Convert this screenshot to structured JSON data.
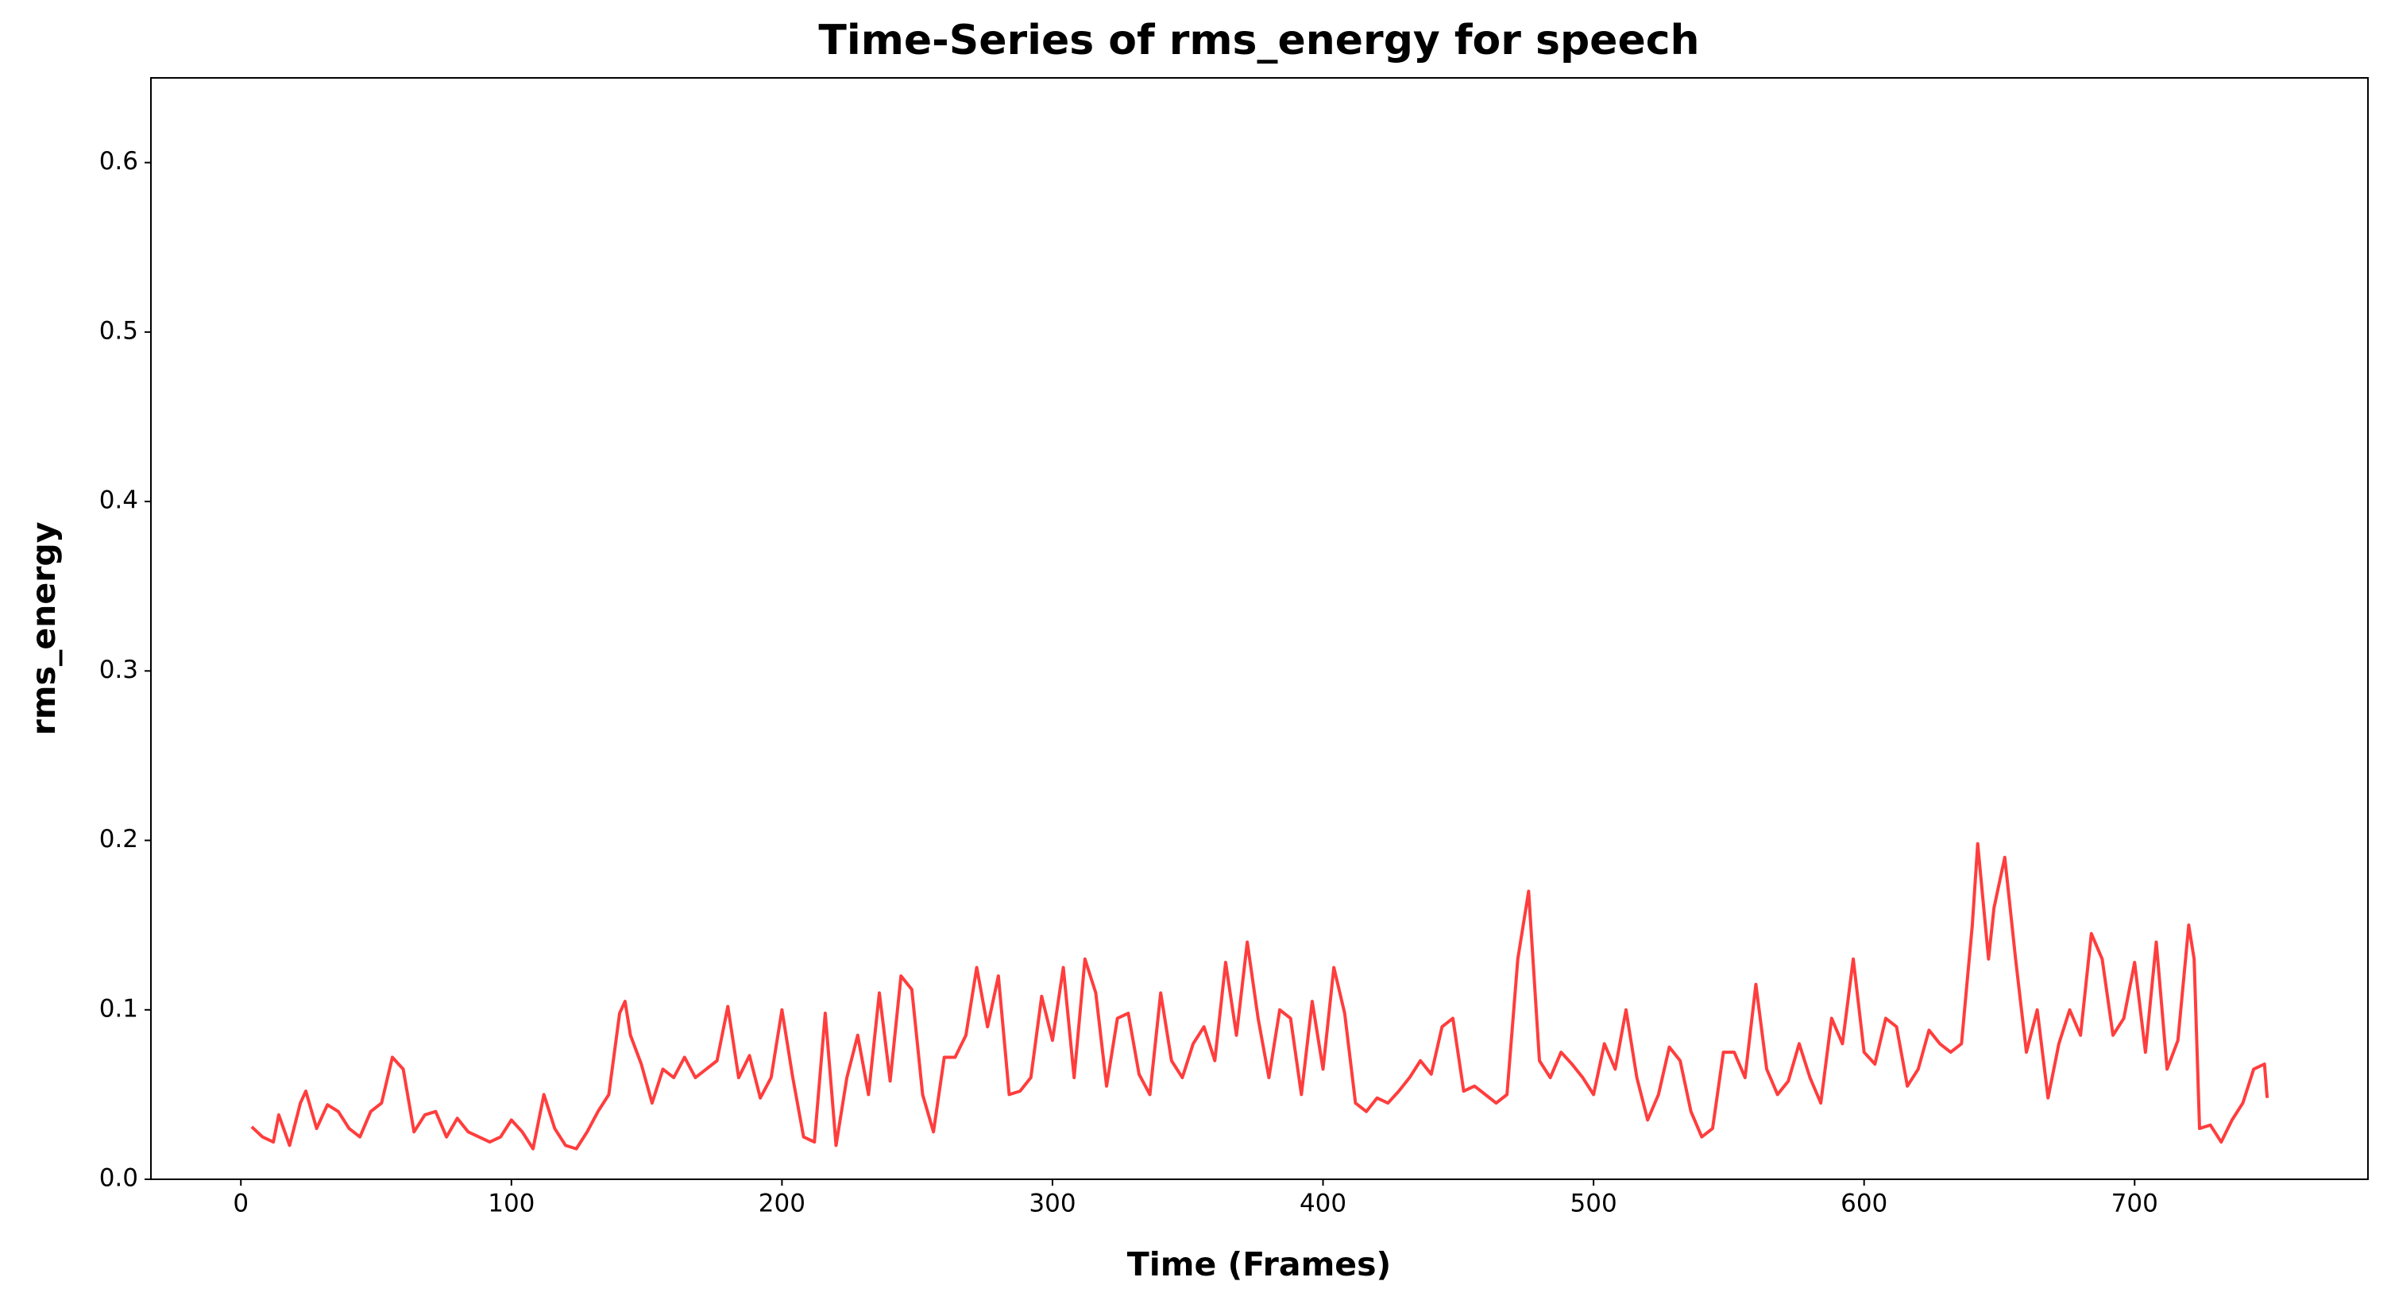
{
  "chart_data": {
    "type": "line",
    "title": "Time-Series of rms_energy for speech",
    "x_label": "Time (Frames)",
    "y_label": "rms_energy",
    "x": [
      4,
      8,
      12,
      14,
      18,
      22,
      24,
      28,
      32,
      36,
      40,
      44,
      48,
      52,
      56,
      60,
      64,
      68,
      72,
      76,
      80,
      84,
      88,
      92,
      96,
      100,
      104,
      108,
      112,
      116,
      120,
      124,
      128,
      132,
      136,
      140,
      142,
      144,
      148,
      152,
      156,
      160,
      164,
      168,
      172,
      176,
      180,
      184,
      188,
      192,
      196,
      200,
      204,
      208,
      212,
      216,
      220,
      224,
      228,
      232,
      236,
      240,
      244,
      248,
      252,
      256,
      260,
      264,
      268,
      272,
      276,
      280,
      284,
      288,
      292,
      296,
      300,
      304,
      308,
      312,
      316,
      320,
      324,
      328,
      332,
      336,
      340,
      344,
      348,
      352,
      356,
      360,
      364,
      368,
      372,
      376,
      380,
      384,
      388,
      392,
      396,
      400,
      404,
      408,
      412,
      416,
      420,
      424,
      428,
      432,
      436,
      440,
      444,
      448,
      452,
      456,
      460,
      464,
      468,
      472,
      476,
      480,
      484,
      488,
      492,
      496,
      500,
      504,
      508,
      512,
      516,
      520,
      524,
      528,
      532,
      536,
      540,
      544,
      548,
      552,
      556,
      560,
      564,
      568,
      572,
      576,
      580,
      584,
      588,
      592,
      596,
      600,
      604,
      608,
      612,
      616,
      620,
      624,
      628,
      632,
      636,
      640,
      642,
      646,
      648,
      652,
      656,
      660,
      664,
      668,
      672,
      676,
      680,
      684,
      688,
      692,
      696,
      700,
      704,
      708,
      712,
      716,
      720,
      722,
      724,
      728,
      732,
      736,
      740,
      744,
      748,
      749
    ],
    "series": [
      {
        "name": "rms_energy",
        "color": "#ff3333",
        "values": [
          0.031,
          0.025,
          0.022,
          0.038,
          0.02,
          0.045,
          0.052,
          0.03,
          0.044,
          0.04,
          0.03,
          0.025,
          0.04,
          0.045,
          0.072,
          0.065,
          0.028,
          0.038,
          0.04,
          0.025,
          0.036,
          0.028,
          0.025,
          0.022,
          0.025,
          0.035,
          0.028,
          0.018,
          0.05,
          0.03,
          0.02,
          0.018,
          0.028,
          0.04,
          0.05,
          0.098,
          0.105,
          0.085,
          0.068,
          0.045,
          0.065,
          0.06,
          0.072,
          0.06,
          0.065,
          0.07,
          0.102,
          0.06,
          0.073,
          0.048,
          0.06,
          0.1,
          0.06,
          0.025,
          0.022,
          0.098,
          0.02,
          0.06,
          0.085,
          0.05,
          0.11,
          0.058,
          0.12,
          0.112,
          0.05,
          0.028,
          0.072,
          0.072,
          0.085,
          0.125,
          0.09,
          0.12,
          0.05,
          0.052,
          0.06,
          0.108,
          0.082,
          0.125,
          0.06,
          0.13,
          0.11,
          0.055,
          0.095,
          0.098,
          0.062,
          0.05,
          0.11,
          0.07,
          0.06,
          0.08,
          0.09,
          0.07,
          0.128,
          0.085,
          0.14,
          0.095,
          0.06,
          0.1,
          0.095,
          0.05,
          0.105,
          0.065,
          0.125,
          0.098,
          0.045,
          0.04,
          0.048,
          0.045,
          0.052,
          0.06,
          0.07,
          0.062,
          0.09,
          0.095,
          0.052,
          0.055,
          0.05,
          0.045,
          0.05,
          0.13,
          0.17,
          0.07,
          0.06,
          0.075,
          0.068,
          0.06,
          0.05,
          0.08,
          0.065,
          0.1,
          0.06,
          0.035,
          0.05,
          0.078,
          0.07,
          0.04,
          0.025,
          0.03,
          0.075,
          0.075,
          0.06,
          0.115,
          0.065,
          0.05,
          0.058,
          0.08,
          0.06,
          0.045,
          0.095,
          0.08,
          0.13,
          0.075,
          0.068,
          0.095,
          0.09,
          0.055,
          0.065,
          0.088,
          0.08,
          0.075,
          0.08,
          0.15,
          0.198,
          0.13,
          0.16,
          0.19,
          0.13,
          0.075,
          0.1,
          0.048,
          0.08,
          0.1,
          0.085,
          0.145,
          0.13,
          0.085,
          0.095,
          0.128,
          0.075,
          0.14,
          0.065,
          0.082,
          0.15,
          0.13,
          0.03,
          0.032,
          0.022,
          0.035,
          0.045,
          0.065,
          0.068,
          0.048
        ]
      }
    ],
    "xlim": [
      -33.25,
      786.25
    ],
    "xticks": [
      0,
      100,
      200,
      300,
      400,
      500,
      600,
      700
    ],
    "ylim": [
      0,
      0.65
    ],
    "yticks": [
      {
        "value": 0,
        "label": "0.0"
      },
      0.1,
      0.2,
      0.3,
      0.4,
      0.5,
      0.6
    ],
    "grid": false
  }
}
